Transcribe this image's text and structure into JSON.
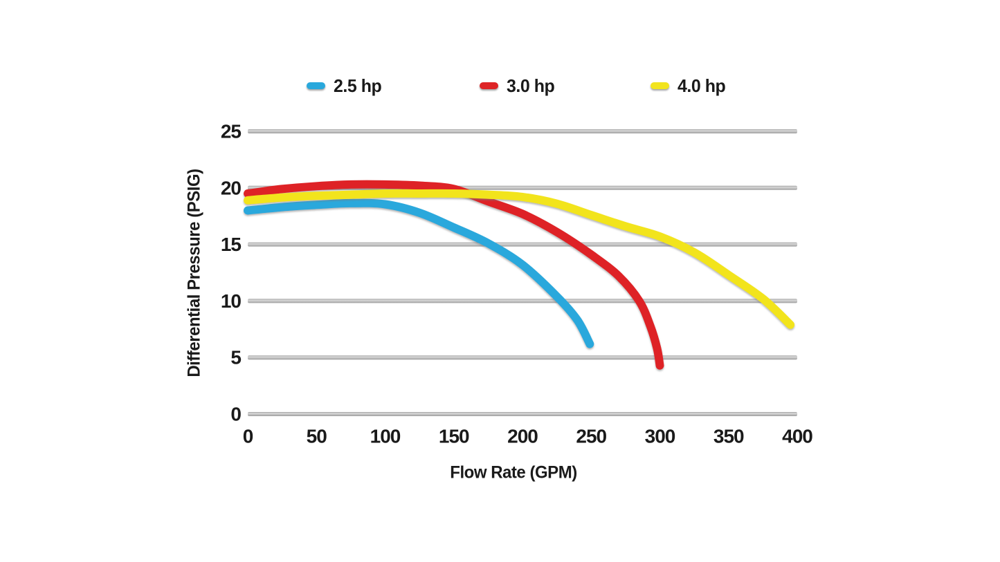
{
  "chart_data": {
    "type": "line",
    "title": "",
    "xlabel": "Flow Rate (GPM)",
    "ylabel": "Differential Pressure (PSIG)",
    "xlim": [
      0,
      400
    ],
    "ylim": [
      0,
      25
    ],
    "xticks": [
      0,
      50,
      100,
      150,
      200,
      250,
      300,
      350,
      400
    ],
    "yticks": [
      0,
      5,
      10,
      15,
      20,
      25
    ],
    "grid": "horizontal-only",
    "legend_position": "top",
    "series": [
      {
        "name": "2.5 hp",
        "color": "#29a8dc",
        "points": [
          [
            0,
            18.0
          ],
          [
            25,
            18.3
          ],
          [
            50,
            18.5
          ],
          [
            75,
            18.65
          ],
          [
            100,
            18.55
          ],
          [
            125,
            17.8
          ],
          [
            150,
            16.5
          ],
          [
            175,
            15.1
          ],
          [
            200,
            13.2
          ],
          [
            225,
            10.4
          ],
          [
            240,
            8.3
          ],
          [
            249,
            6.2
          ]
        ]
      },
      {
        "name": "3.0 hp",
        "color": "#de2426",
        "points": [
          [
            0,
            19.5
          ],
          [
            25,
            19.9
          ],
          [
            50,
            20.15
          ],
          [
            75,
            20.3
          ],
          [
            100,
            20.3
          ],
          [
            125,
            20.2
          ],
          [
            150,
            19.9
          ],
          [
            175,
            18.8
          ],
          [
            200,
            17.7
          ],
          [
            225,
            16.1
          ],
          [
            250,
            14.1
          ],
          [
            270,
            12.2
          ],
          [
            285,
            10.0
          ],
          [
            293,
            7.8
          ],
          [
            298,
            5.8
          ],
          [
            300,
            4.3
          ]
        ]
      },
      {
        "name": "4.0 hp",
        "color": "#f2e41e",
        "points": [
          [
            0,
            18.9
          ],
          [
            25,
            19.15
          ],
          [
            50,
            19.3
          ],
          [
            75,
            19.4
          ],
          [
            100,
            19.5
          ],
          [
            125,
            19.5
          ],
          [
            150,
            19.5
          ],
          [
            175,
            19.4
          ],
          [
            200,
            19.2
          ],
          [
            225,
            18.6
          ],
          [
            250,
            17.6
          ],
          [
            275,
            16.6
          ],
          [
            300,
            15.7
          ],
          [
            325,
            14.3
          ],
          [
            350,
            12.3
          ],
          [
            375,
            10.2
          ],
          [
            395,
            7.9
          ]
        ]
      }
    ]
  },
  "colors": {
    "background": "#ffffff",
    "gridline_dark": "#9c9c9c",
    "gridline_light": "#d8d8d8",
    "gridline_mid": "#c3c3c3",
    "text": "#1a1a1a"
  }
}
